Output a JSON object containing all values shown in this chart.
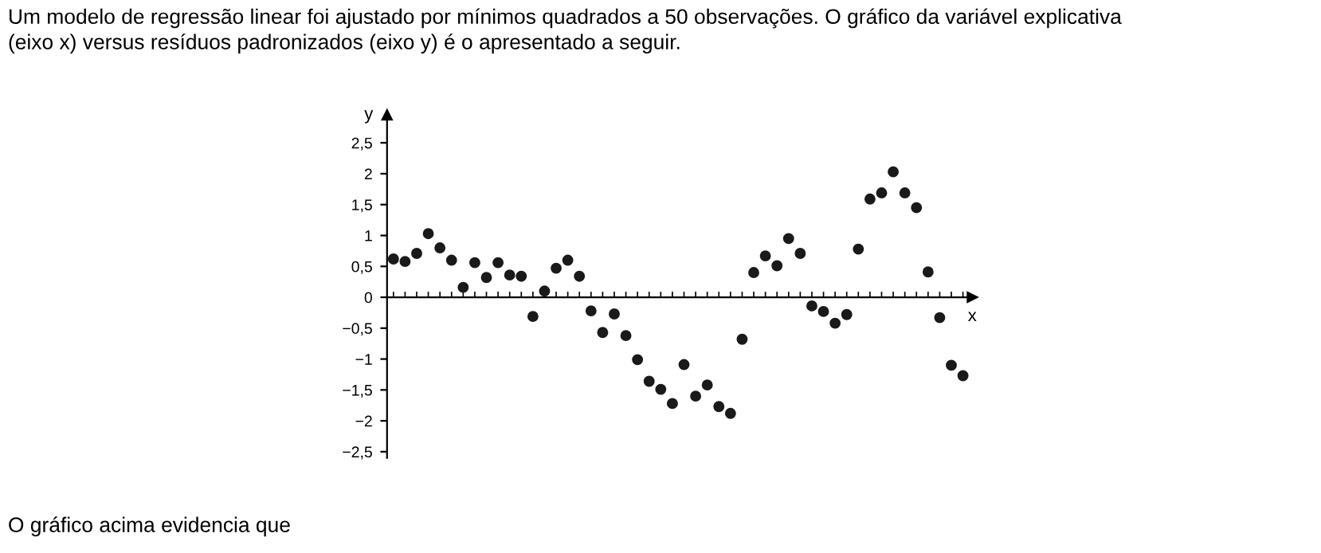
{
  "chart_data": {
    "type": "scatter",
    "title": "Um modelo de regressão linear foi ajustado por mínimos quadrados a 50 observações. O gráfico da variável explicativa\n(eixo x) versus resíduos padronizados (eixo y) é o apresentado a seguir.",
    "xlabel": "x",
    "ylabel": "y",
    "annotations": [
      "O gráfico acima evidencia que"
    ],
    "categories": [
      null,
      null,
      null,
      null,
      null,
      null,
      null,
      null,
      null,
      null,
      null,
      null,
      null,
      null,
      null,
      null,
      null,
      null,
      null,
      null,
      null,
      null,
      null,
      null,
      null,
      null,
      null,
      null,
      null,
      null,
      null,
      null,
      null,
      null,
      null,
      null,
      null,
      null,
      null,
      null,
      null,
      null,
      null,
      null,
      null,
      null,
      null,
      null,
      null,
      null
    ],
    "series": [
      {
        "color": "#1a1a1a",
        "values": [
          0.62,
          0.58,
          0.71,
          1.03,
          0.8,
          0.6,
          0.16,
          0.56,
          0.32,
          0.56,
          0.36,
          0.34,
          -0.31,
          0.1,
          0.47,
          0.6,
          0.34,
          -0.22,
          -0.57,
          -0.27,
          -0.62,
          -1.01,
          -1.36,
          -1.49,
          -1.72,
          -1.09,
          -1.6,
          -1.42,
          -1.77,
          -1.88,
          -0.68,
          0.4,
          0.67,
          0.51,
          0.95,
          0.71,
          -0.14,
          -0.23,
          -0.42,
          -0.28,
          0.78,
          1.59,
          1.69,
          2.03,
          1.69,
          1.45,
          0.41,
          -0.33,
          -1.1,
          -1.27
        ]
      }
    ],
    "ylim": [
      -2.6,
      2.95
    ],
    "yticks": [
      {
        "value": -2.5,
        "label": "−2,5"
      },
      {
        "value": -2,
        "label": "−2"
      },
      {
        "value": -1.5,
        "label": "−1,5"
      },
      {
        "value": -1,
        "label": "−1"
      },
      {
        "value": -0.5,
        "label": "−0,5"
      },
      0,
      {
        "value": 0.5,
        "label": "0,5"
      },
      1,
      {
        "value": 1.5,
        "label": "1,5"
      },
      2,
      {
        "value": 2.5,
        "label": "2,5"
      }
    ],
    "marker": "circle",
    "legend": false
  }
}
